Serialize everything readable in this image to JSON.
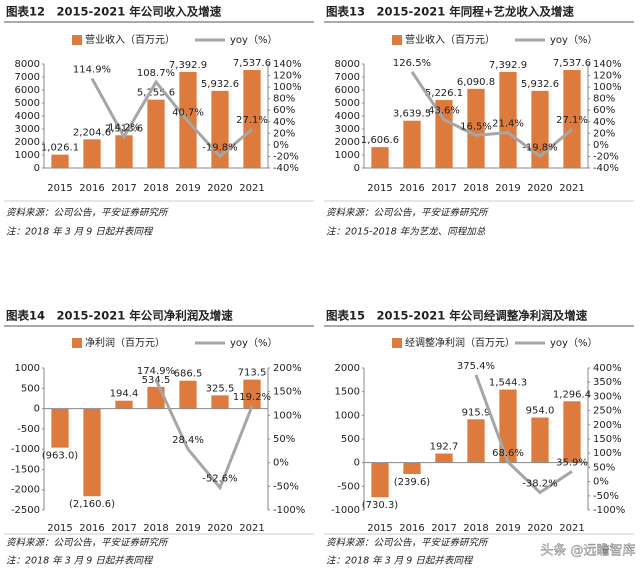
{
  "chart_data": [
    {
      "type": "bar",
      "title": "图表12　2015-2021 年公司收入及增速",
      "categories": [
        "2015",
        "2016",
        "2017",
        "2018",
        "2019",
        "2020",
        "2021"
      ],
      "series": [
        {
          "name": "营业收入（百万元）",
          "color": "#dd7b3e",
          "values": [
            1026.1,
            2204.6,
            2518.6,
            5255.6,
            7392.9,
            5932.6,
            7537.6
          ],
          "value_labels": [
            "1,026.1",
            "2,204.6",
            "2,518.6",
            "5,255.6",
            "7,392.9",
            "5,932.6",
            "7,537.6"
          ]
        },
        {
          "name": "yoy（%）",
          "color": "#a6a6a6",
          "type": "line",
          "axis": "y2",
          "values": [
            null,
            114.9,
            14.2,
            108.7,
            40.7,
            -19.8,
            27.1
          ],
          "value_labels": [
            null,
            "114.9%",
            "14.2%",
            "108.7%",
            "40.7%",
            "-19.8%",
            "27.1%"
          ]
        }
      ],
      "ylim": [
        0,
        8000
      ],
      "yticks": [
        0,
        1000,
        2000,
        3000,
        4000,
        5000,
        6000,
        7000,
        8000
      ],
      "y2lim": [
        -40,
        140
      ],
      "y2ticks": [
        {
          "value": -40,
          "label": "-40%"
        },
        {
          "value": -20,
          "label": "-20%"
        },
        {
          "value": 0,
          "label": "0%"
        },
        {
          "value": 20,
          "label": "20%"
        },
        {
          "value": 40,
          "label": "40%"
        },
        {
          "value": 60,
          "label": "60%"
        },
        {
          "value": 80,
          "label": "80%"
        },
        {
          "value": 100,
          "label": "100%"
        },
        {
          "value": 120,
          "label": "120%"
        },
        {
          "value": 140,
          "label": "140%"
        }
      ],
      "source": "资料来源：公司公告，平安证券研究所",
      "note": "注：2018 年 3 月 9 日起并表同程"
    },
    {
      "type": "bar",
      "title": "图表13　2015-2021 年同程+艺龙收入及增速",
      "categories": [
        "2015",
        "2016",
        "2017",
        "2018",
        "2019",
        "2020",
        "2021"
      ],
      "series": [
        {
          "name": "营业收入（百万元）",
          "color": "#dd7b3e",
          "values": [
            1606.6,
            3639.5,
            5226.1,
            6090.8,
            7392.9,
            5932.6,
            7537.6
          ],
          "value_labels": [
            "1,606.6",
            "3,639.5",
            "5,226.1",
            "6,090.8",
            "7,392.9",
            "5,932.6",
            "7,537.6"
          ]
        },
        {
          "name": "yoy（%）",
          "color": "#a6a6a6",
          "type": "line",
          "axis": "y2",
          "values": [
            null,
            126.5,
            43.6,
            16.5,
            21.4,
            -19.8,
            27.1
          ],
          "value_labels": [
            null,
            "126.5%",
            "43.6%",
            "16.5%",
            "21.4%",
            "-19.8%",
            "27.1%"
          ]
        }
      ],
      "ylim": [
        0,
        8000
      ],
      "yticks": [
        0,
        1000,
        2000,
        3000,
        4000,
        5000,
        6000,
        7000,
        8000
      ],
      "y2lim": [
        -40,
        140
      ],
      "y2ticks": [
        {
          "value": -40,
          "label": "-40%"
        },
        {
          "value": -20,
          "label": "-20%"
        },
        {
          "value": 0,
          "label": "0%"
        },
        {
          "value": 20,
          "label": "20%"
        },
        {
          "value": 40,
          "label": "40%"
        },
        {
          "value": 60,
          "label": "60%"
        },
        {
          "value": 80,
          "label": "80%"
        },
        {
          "value": 100,
          "label": "100%"
        },
        {
          "value": 120,
          "label": "120%"
        },
        {
          "value": 140,
          "label": "140%"
        }
      ],
      "source": "资料来源：公司公告，平安证券研究所",
      "note": "注：2015-2018 年为艺龙、同程加总"
    },
    {
      "type": "bar",
      "title": "图表14　2015-2021 年公司净利润及增速",
      "categories": [
        "2015",
        "2016",
        "2017",
        "2018",
        "2019",
        "2020",
        "2021"
      ],
      "series": [
        {
          "name": "净利润（百万元）",
          "color": "#dd7b3e",
          "values": [
            -963.0,
            -2160.6,
            194.4,
            534.5,
            686.5,
            325.5,
            713.5
          ],
          "value_labels": [
            "(963.0)",
            "(2,160.6)",
            "194.4",
            "534.5",
            "686.5",
            "325.5",
            "713.5"
          ]
        },
        {
          "name": "yoy（%）",
          "color": "#a6a6a6",
          "type": "line",
          "axis": "y2",
          "values": [
            null,
            null,
            null,
            174.9,
            28.4,
            -52.6,
            119.2
          ],
          "value_labels": [
            null,
            null,
            null,
            "174.9%",
            "28.4%",
            "-52.6%",
            "119.2%"
          ]
        }
      ],
      "ylim": [
        -2500,
        1000
      ],
      "yticks": [
        -2500,
        -2000,
        -1500,
        -1000,
        -500,
        0,
        500,
        1000
      ],
      "y2lim": [
        -100,
        200
      ],
      "y2ticks": [
        {
          "value": -100,
          "label": "-100%"
        },
        {
          "value": -50,
          "label": "-50%"
        },
        {
          "value": 0,
          "label": "0%"
        },
        {
          "value": 50,
          "label": "50%"
        },
        {
          "value": 100,
          "label": "100%"
        },
        {
          "value": 150,
          "label": "150%"
        },
        {
          "value": 200,
          "label": "200%"
        }
      ],
      "source": "资料来源：公司公告，平安证券研究所",
      "note": "注：2018 年 3 月 9 日起并表同程"
    },
    {
      "type": "bar",
      "title": "图表15　2015-2021 年公司经调整净利润及增速",
      "categories": [
        "2015",
        "2016",
        "2017",
        "2018",
        "2019",
        "2020",
        "2021"
      ],
      "series": [
        {
          "name": "经调整净利润（百万元）",
          "color": "#dd7b3e",
          "values": [
            -730.3,
            -239.6,
            192.7,
            915.9,
            1544.3,
            954.0,
            1296.4
          ],
          "value_labels": [
            "(730.3)",
            "(239.6)",
            "192.7",
            "915.9",
            "1,544.3",
            "954.0",
            "1,296.4"
          ]
        },
        {
          "name": "yoy（%）",
          "color": "#a6a6a6",
          "type": "line",
          "axis": "y2",
          "values": [
            null,
            null,
            null,
            375.4,
            68.6,
            -38.2,
            35.9
          ],
          "value_labels": [
            null,
            null,
            null,
            "375.4%",
            "68.6%",
            "-38.2%",
            "35.9%"
          ]
        }
      ],
      "ylim": [
        -1000,
        2000
      ],
      "yticks": [
        -1000,
        -500,
        0,
        500,
        1000,
        1500,
        2000
      ],
      "y2lim": [
        -100,
        400
      ],
      "y2ticks": [
        {
          "value": -100,
          "label": "-100%"
        },
        {
          "value": -50,
          "label": "-50%"
        },
        {
          "value": 0,
          "label": "0%"
        },
        {
          "value": 50,
          "label": "50%"
        },
        {
          "value": 100,
          "label": "100%"
        },
        {
          "value": 150,
          "label": "150%"
        },
        {
          "value": 200,
          "label": "200%"
        },
        {
          "value": 250,
          "label": "250%"
        },
        {
          "value": 300,
          "label": "300%"
        },
        {
          "value": 350,
          "label": "350%"
        },
        {
          "value": 400,
          "label": "400%"
        }
      ],
      "source": "资料来源：公司公告，平安证券研究所",
      "note": "注：2018 年 3 月 9 日起并表同程"
    }
  ],
  "watermark": "头条 @远瞻智库"
}
